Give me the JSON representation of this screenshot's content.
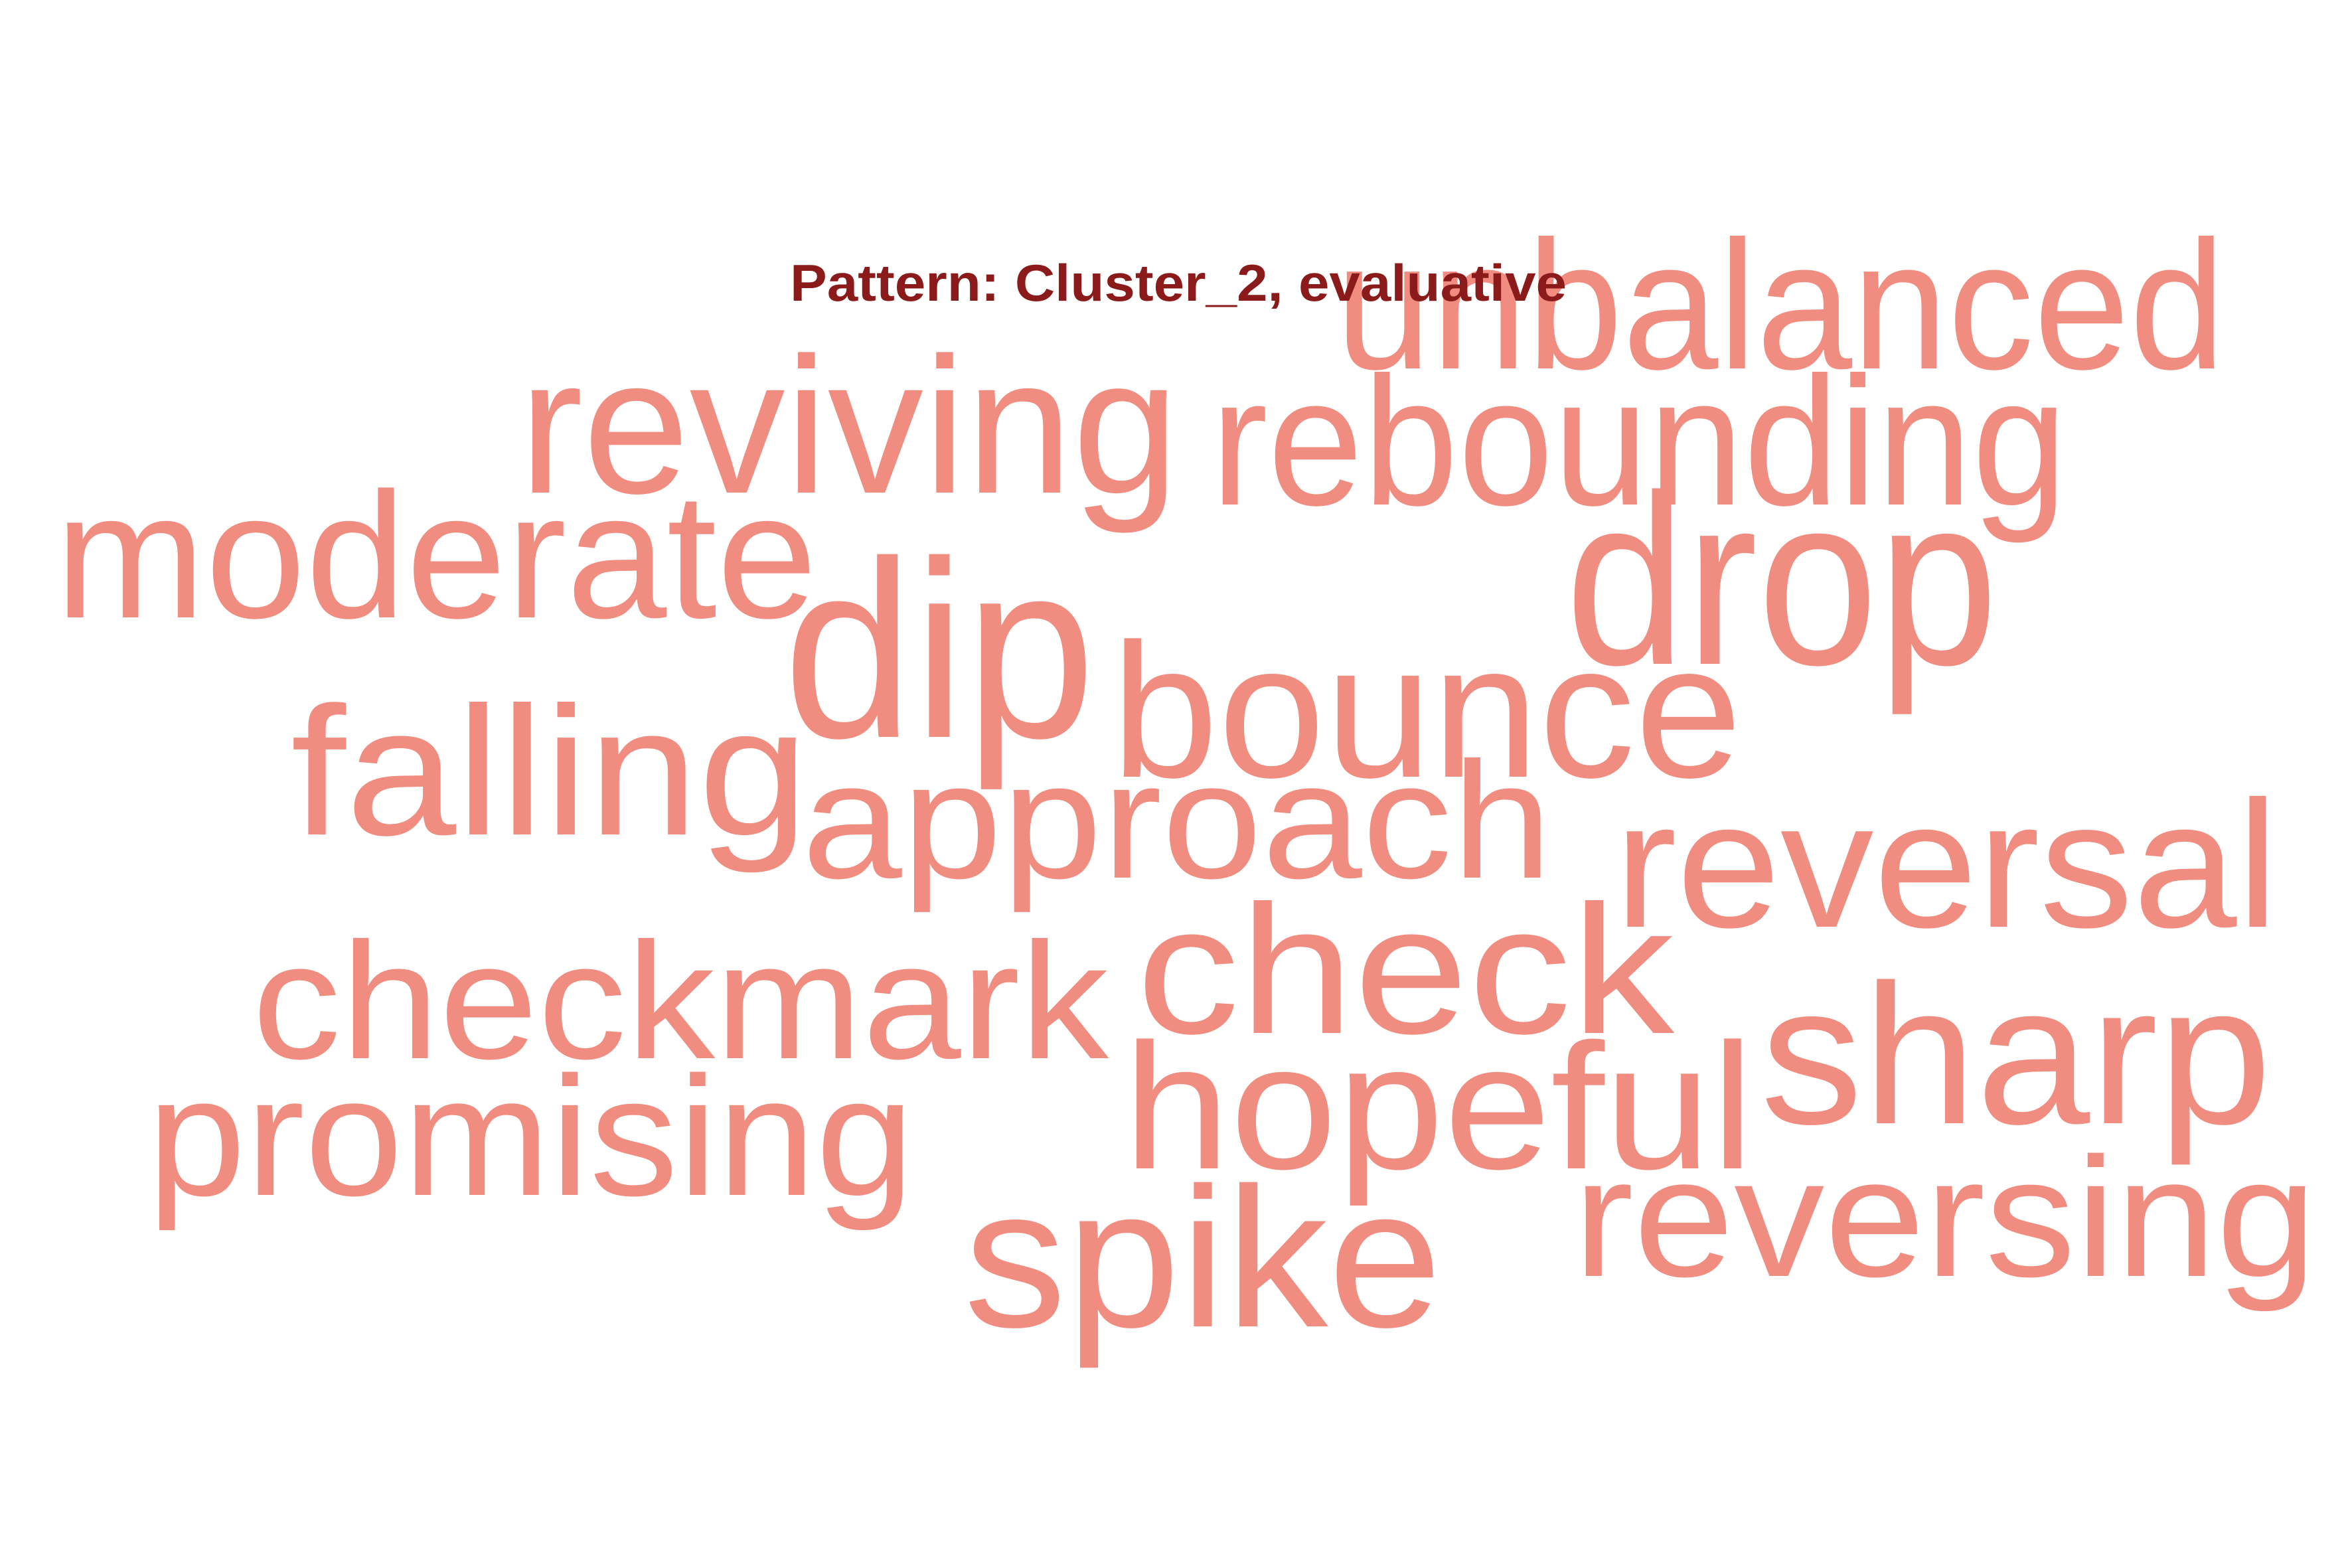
{
  "title": "Pattern: Cluster_2, evaluative",
  "colors": {
    "word": "#F08C80",
    "title": "#8B1A1A",
    "background": "#FFFFFF"
  },
  "words": [
    "unbalanced",
    "reviving",
    "rebounding",
    "moderate",
    "drop",
    "dip",
    "bounce",
    "falling",
    "approach",
    "reversal",
    "checkmark",
    "check",
    "sharp",
    "hopeful",
    "promising",
    "reversing",
    "spike"
  ]
}
